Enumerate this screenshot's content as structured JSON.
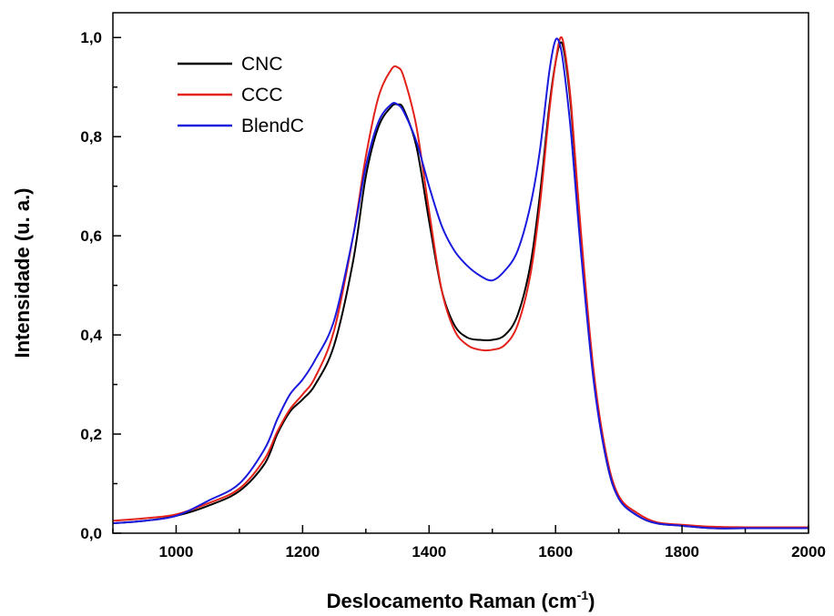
{
  "chart_data": {
    "type": "line",
    "xlabel": "Deslocamento Raman (cm",
    "xlabel_sup": "-1",
    "xlabel_end": ")",
    "ylabel": "Intensidade (u. a.)",
    "xlim": [
      900,
      2000
    ],
    "ylim": [
      0,
      1.05
    ],
    "x_ticks": [
      1000,
      1200,
      1400,
      1600,
      1800,
      2000
    ],
    "x_tick_labels": [
      "1000",
      "1200",
      "1400",
      "1600",
      "1800",
      "2000"
    ],
    "y_ticks": [
      0,
      0.2,
      0.4,
      0.6,
      0.8,
      1.0
    ],
    "y_tick_labels": [
      "0,0",
      "0,2",
      "0,4",
      "0,6",
      "0,8",
      "1,0"
    ],
    "grid": false,
    "legend_position": "top-left",
    "series": [
      {
        "name": "CNC",
        "color": "#000000",
        "x": [
          900,
          950,
          1000,
          1050,
          1100,
          1140,
          1160,
          1180,
          1200,
          1220,
          1250,
          1280,
          1300,
          1320,
          1340,
          1350,
          1360,
          1380,
          1400,
          1420,
          1440,
          1460,
          1480,
          1500,
          1520,
          1540,
          1560,
          1575,
          1590,
          1600,
          1608,
          1615,
          1625,
          1640,
          1660,
          1680,
          1700,
          1730,
          1760,
          1800,
          1850,
          1900,
          1950,
          2000
        ],
        "y": [
          0.02,
          0.025,
          0.035,
          0.055,
          0.085,
          0.14,
          0.2,
          0.245,
          0.27,
          0.3,
          0.38,
          0.55,
          0.72,
          0.82,
          0.86,
          0.865,
          0.855,
          0.78,
          0.63,
          0.49,
          0.42,
          0.395,
          0.39,
          0.39,
          0.4,
          0.44,
          0.54,
          0.68,
          0.86,
          0.95,
          0.99,
          0.96,
          0.85,
          0.6,
          0.32,
          0.15,
          0.07,
          0.035,
          0.02,
          0.015,
          0.01,
          0.01,
          0.01,
          0.01
        ]
      },
      {
        "name": "CCC",
        "color": "#e32119",
        "x": [
          900,
          950,
          1000,
          1050,
          1100,
          1140,
          1160,
          1180,
          1200,
          1220,
          1250,
          1280,
          1300,
          1320,
          1340,
          1350,
          1360,
          1380,
          1400,
          1420,
          1440,
          1460,
          1480,
          1500,
          1520,
          1540,
          1560,
          1575,
          1590,
          1600,
          1608,
          1615,
          1625,
          1640,
          1660,
          1680,
          1700,
          1730,
          1760,
          1800,
          1850,
          1900,
          1950,
          2000
        ],
        "y": [
          0.025,
          0.03,
          0.038,
          0.06,
          0.09,
          0.15,
          0.205,
          0.25,
          0.28,
          0.315,
          0.41,
          0.6,
          0.76,
          0.88,
          0.935,
          0.94,
          0.92,
          0.82,
          0.65,
          0.49,
          0.41,
          0.38,
          0.37,
          0.37,
          0.38,
          0.42,
          0.52,
          0.66,
          0.85,
          0.95,
          1.0,
          0.97,
          0.86,
          0.61,
          0.33,
          0.16,
          0.075,
          0.04,
          0.022,
          0.017,
          0.013,
          0.012,
          0.012,
          0.012
        ]
      },
      {
        "name": "BlendC",
        "color": "#1a1adf",
        "x": [
          900,
          950,
          1000,
          1050,
          1100,
          1140,
          1160,
          1180,
          1200,
          1220,
          1250,
          1280,
          1300,
          1320,
          1340,
          1350,
          1360,
          1380,
          1400,
          1420,
          1440,
          1460,
          1480,
          1500,
          1520,
          1540,
          1560,
          1575,
          1590,
          1600,
          1608,
          1615,
          1625,
          1640,
          1660,
          1680,
          1700,
          1730,
          1760,
          1800,
          1850,
          1900,
          1950,
          2000
        ],
        "y": [
          0.02,
          0.025,
          0.035,
          0.065,
          0.1,
          0.17,
          0.23,
          0.28,
          0.31,
          0.35,
          0.43,
          0.6,
          0.74,
          0.83,
          0.865,
          0.865,
          0.85,
          0.79,
          0.7,
          0.62,
          0.57,
          0.54,
          0.52,
          0.51,
          0.53,
          0.57,
          0.66,
          0.77,
          0.93,
          0.995,
          0.98,
          0.92,
          0.8,
          0.57,
          0.31,
          0.15,
          0.07,
          0.035,
          0.02,
          0.015,
          0.01,
          0.01,
          0.01,
          0.01
        ]
      }
    ]
  }
}
